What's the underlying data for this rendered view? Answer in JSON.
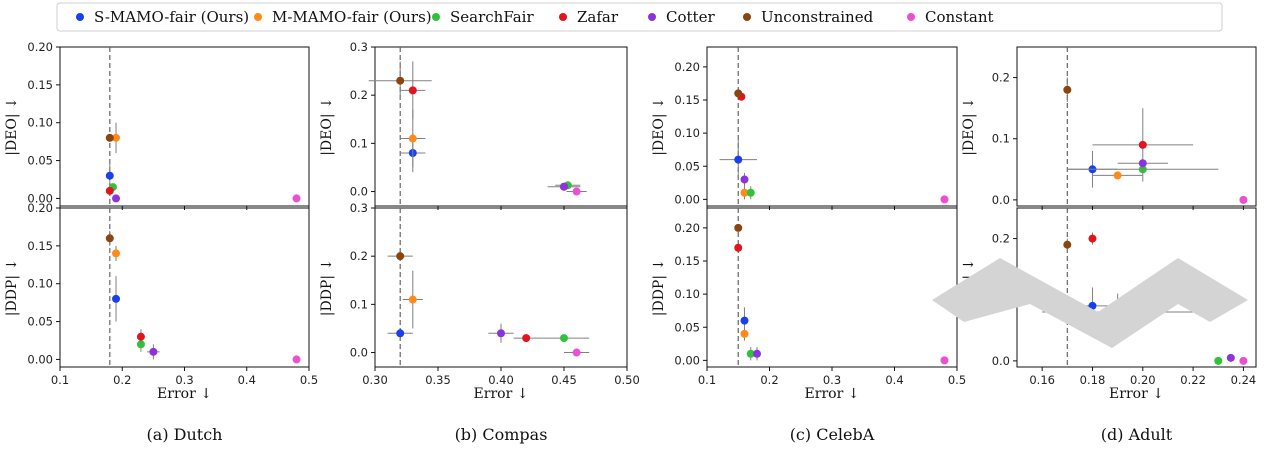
{
  "legend": [
    {
      "label": "S-MAMO-fair (Ours)",
      "color": "#1a3ff0"
    },
    {
      "label": "M-MAMO-fair (Ours)",
      "color": "#ff8a1a"
    },
    {
      "label": "SearchFair",
      "color": "#2fc33a"
    },
    {
      "label": "Zafar",
      "color": "#e0151e"
    },
    {
      "label": "Cotter",
      "color": "#8b34dd"
    },
    {
      "label": "Unconstrained",
      "color": "#8b4511"
    },
    {
      "label": "Constant",
      "color": "#ec4fd0"
    }
  ],
  "chart_data": [
    {
      "type": "scatter",
      "caption": "(a) Dutch",
      "xlabel": "Error ↓",
      "xlim": [
        0.1,
        0.5
      ],
      "xticks": [
        "0.1",
        "0.2",
        "0.3",
        "0.4",
        "0.5"
      ],
      "vline": 0.18,
      "top": {
        "ylabel": "|DEO| ↓",
        "ylim": [
          -0.01,
          0.2
        ],
        "yticks": [
          "0.00",
          "0.05",
          "0.10",
          "0.15",
          "0.20"
        ],
        "points": [
          {
            "series": 0,
            "x": 0.18,
            "y": 0.03,
            "yerr": 0.02
          },
          {
            "series": 1,
            "x": 0.19,
            "y": 0.08,
            "yerr": 0.02
          },
          {
            "series": 2,
            "x": 0.185,
            "y": 0.015
          },
          {
            "series": 3,
            "x": 0.18,
            "y": 0.01
          },
          {
            "series": 4,
            "x": 0.19,
            "y": 0.0
          },
          {
            "series": 5,
            "x": 0.18,
            "y": 0.08
          },
          {
            "series": 6,
            "x": 0.48,
            "y": 0.0
          }
        ]
      },
      "bottom": {
        "ylabel": "|DDP| ↓",
        "ylim": [
          -0.01,
          0.2
        ],
        "yticks": [
          "0.00",
          "0.05",
          "0.10",
          "0.15",
          "0.20"
        ],
        "points": [
          {
            "series": 0,
            "x": 0.19,
            "y": 0.08,
            "yerr": 0.03
          },
          {
            "series": 1,
            "x": 0.19,
            "y": 0.14,
            "yerr": 0.01
          },
          {
            "series": 2,
            "x": 0.23,
            "y": 0.02,
            "yerr": 0.01
          },
          {
            "series": 3,
            "x": 0.23,
            "y": 0.03,
            "yerr": 0.01
          },
          {
            "series": 4,
            "x": 0.25,
            "y": 0.01,
            "xerr": 0.01,
            "yerr": 0.01
          },
          {
            "series": 5,
            "x": 0.18,
            "y": 0.16,
            "yerr": 0.01
          },
          {
            "series": 6,
            "x": 0.48,
            "y": 0.0
          }
        ]
      }
    },
    {
      "type": "scatter",
      "caption": "(b) Compas",
      "xlabel": "Error ↓",
      "xlim": [
        0.3,
        0.5
      ],
      "xticks": [
        "0.30",
        "0.35",
        "0.40",
        "0.45",
        "0.50"
      ],
      "vline": 0.32,
      "top": {
        "ylabel": "|DEO| ↓",
        "ylim": [
          -0.03,
          0.3
        ],
        "yticks": [
          "0.0",
          "0.1",
          "0.2",
          "0.3"
        ],
        "points": [
          {
            "series": 0,
            "x": 0.33,
            "y": 0.08,
            "xerr": 0.01,
            "yerr": 0.04
          },
          {
            "series": 1,
            "x": 0.33,
            "y": 0.11,
            "xerr": 0.01,
            "yerr": 0.06
          },
          {
            "series": 2,
            "x": 0.453,
            "y": 0.013,
            "xerr": 0.01
          },
          {
            "series": 3,
            "x": 0.45,
            "y": 0.01
          },
          {
            "series": 4,
            "x": 0.45,
            "y": 0.01,
            "xerr": 0.013
          },
          {
            "series": 5,
            "x": 0.32,
            "y": 0.23,
            "xerr": 0.025,
            "yerr": 0.04
          },
          {
            "series": 6,
            "x": 0.46,
            "y": 0.0,
            "xerr": 0.008
          },
          {
            "series": 3,
            "x": 0.33,
            "y": 0.21,
            "xerr": 0.01,
            "yerr": 0.06
          }
        ]
      },
      "bottom": {
        "ylabel": "|DDP| ↓",
        "ylim": [
          -0.03,
          0.3
        ],
        "yticks": [
          "0.0",
          "0.1",
          "0.2",
          "0.3"
        ],
        "points": [
          {
            "series": 0,
            "x": 0.32,
            "y": 0.04,
            "xerr": 0.01
          },
          {
            "series": 1,
            "x": 0.33,
            "y": 0.11,
            "xerr": 0.008,
            "yerr": 0.06
          },
          {
            "series": 2,
            "x": 0.45,
            "y": 0.03,
            "xerr": 0.02
          },
          {
            "series": 3,
            "x": 0.42,
            "y": 0.03,
            "xerr": 0.01
          },
          {
            "series": 4,
            "x": 0.4,
            "y": 0.04,
            "xerr": 0.01,
            "yerr": 0.02
          },
          {
            "series": 5,
            "x": 0.32,
            "y": 0.2,
            "xerr": 0.01
          },
          {
            "series": 6,
            "x": 0.46,
            "y": 0.0,
            "xerr": 0.01
          }
        ]
      }
    },
    {
      "type": "scatter",
      "caption": "(c) CelebA",
      "xlabel": "Error ↓",
      "xlim": [
        0.1,
        0.5
      ],
      "xticks": [
        "0.1",
        "0.2",
        "0.3",
        "0.4",
        "0.5"
      ],
      "vline": 0.15,
      "top": {
        "ylabel": "|DEO| ↓",
        "ylim": [
          -0.01,
          0.23
        ],
        "yticks": [
          "0.00",
          "0.05",
          "0.10",
          "0.15",
          "0.20"
        ],
        "points": [
          {
            "series": 0,
            "x": 0.15,
            "y": 0.06,
            "xerr": 0.03,
            "yerr": 0.03
          },
          {
            "series": 1,
            "x": 0.16,
            "y": 0.01,
            "yerr": 0.01
          },
          {
            "series": 2,
            "x": 0.17,
            "y": 0.01,
            "yerr": 0.01
          },
          {
            "series": 3,
            "x": 0.155,
            "y": 0.155
          },
          {
            "series": 4,
            "x": 0.16,
            "y": 0.03,
            "yerr": 0.01
          },
          {
            "series": 5,
            "x": 0.15,
            "y": 0.16
          },
          {
            "series": 6,
            "x": 0.48,
            "y": 0.0
          }
        ]
      },
      "bottom": {
        "ylabel": "|DDP| ↓",
        "ylim": [
          -0.01,
          0.23
        ],
        "yticks": [
          "0.00",
          "0.05",
          "0.10",
          "0.15",
          "0.20"
        ],
        "points": [
          {
            "series": 0,
            "x": 0.16,
            "y": 0.06,
            "yerr": 0.02
          },
          {
            "series": 1,
            "x": 0.16,
            "y": 0.04,
            "yerr": 0.01
          },
          {
            "series": 2,
            "x": 0.17,
            "y": 0.01,
            "yerr": 0.01
          },
          {
            "series": 3,
            "x": 0.15,
            "y": 0.17
          },
          {
            "series": 4,
            "x": 0.18,
            "y": 0.01,
            "yerr": 0.01
          },
          {
            "series": 5,
            "x": 0.15,
            "y": 0.2
          },
          {
            "series": 6,
            "x": 0.48,
            "y": 0.0
          }
        ]
      }
    },
    {
      "type": "scatter",
      "caption": "(d) Adult",
      "xlabel": "Error ↓",
      "xlim": [
        0.15,
        0.245
      ],
      "xticks": [
        "0.16",
        "0.18",
        "0.20",
        "0.22",
        "0.24"
      ],
      "vline": 0.17,
      "top": {
        "ylabel": "|DEO| ↓",
        "ylim": [
          -0.01,
          0.25
        ],
        "yticks": [
          "0.0",
          "0.1",
          "0.2"
        ],
        "points": [
          {
            "series": 0,
            "x": 0.18,
            "y": 0.05,
            "xerr": 0.01,
            "yerr": 0.03
          },
          {
            "series": 1,
            "x": 0.19,
            "y": 0.04,
            "xerr": 0.01
          },
          {
            "series": 2,
            "x": 0.2,
            "y": 0.05,
            "xerr": 0.03
          },
          {
            "series": 3,
            "x": 0.2,
            "y": 0.09,
            "xerr": 0.02,
            "yerr": 0.06
          },
          {
            "series": 4,
            "x": 0.2,
            "y": 0.06,
            "xerr": 0.01
          },
          {
            "series": 5,
            "x": 0.17,
            "y": 0.18,
            "yerr": 0.02
          },
          {
            "series": 6,
            "x": 0.24,
            "y": 0.0
          }
        ]
      },
      "bottom": {
        "ylabel": "|DDP| ↓",
        "ylim": [
          -0.01,
          0.25
        ],
        "yticks": [
          "0.0",
          "0.1",
          "0.2"
        ],
        "points": [
          {
            "series": 0,
            "x": 0.18,
            "y": 0.09,
            "xerr": 0.01,
            "yerr": 0.03
          },
          {
            "series": 1,
            "x": 0.19,
            "y": 0.08,
            "xerr": 0.03,
            "yerr": 0.03
          },
          {
            "series": 2,
            "x": 0.23,
            "y": 0.0
          },
          {
            "series": 3,
            "x": 0.18,
            "y": 0.2,
            "yerr": 0.01
          },
          {
            "series": 4,
            "x": 0.235,
            "y": 0.005
          },
          {
            "series": 5,
            "x": 0.17,
            "y": 0.19,
            "yerr": 0.01
          },
          {
            "series": 6,
            "x": 0.24,
            "y": 0.0
          }
        ]
      }
    }
  ]
}
